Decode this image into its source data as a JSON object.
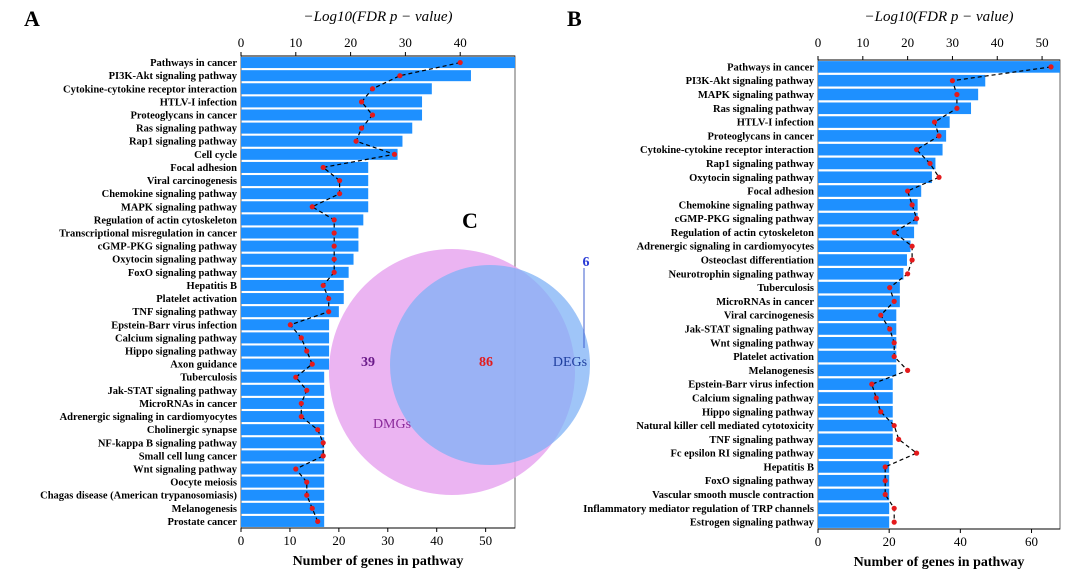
{
  "chart_data": [
    {
      "panel": "A",
      "type": "bar",
      "categories": [
        "Pathways in cancer",
        "PI3K-Akt signaling pathway",
        "Cytokine-cytokine receptor interaction",
        "HTLV-I infection",
        "Proteoglycans in cancer",
        "Ras signaling pathway",
        "Rap1 signaling pathway",
        "Cell cycle",
        "Focal adhesion",
        "Viral carcinogenesis",
        "Chemokine signaling pathway",
        "MAPK signaling pathway",
        "Regulation of actin cytoskeleton",
        "Transcriptional misregulation in cancer",
        "cGMP-PKG signaling pathway",
        "Oxytocin signaling pathway",
        "FoxO signaling pathway",
        "Hepatitis B",
        "Platelet activation",
        "TNF signaling pathway",
        "Epstein-Barr virus infection",
        "Calcium signaling pathway",
        "Hippo signaling pathway",
        "Axon guidance",
        "Tuberculosis",
        "Jak-STAT signaling pathway",
        "MicroRNAs in cancer",
        "Adrenergic signaling in cardiomyocytes",
        "Cholinergic synapse",
        "NF-kappa B signaling pathway",
        "Small cell lung cancer",
        "Wnt signaling pathway",
        "Oocyte meiosis",
        "Chagas disease (American trypanosomiasis)",
        "Melanogenesis",
        "Prostate cancer"
      ],
      "values": [
        56,
        47,
        39,
        37,
        37,
        35,
        33,
        32,
        26,
        26,
        26,
        26,
        25,
        24,
        24,
        23,
        22,
        21,
        21,
        20,
        18,
        18,
        18,
        18,
        17,
        17,
        17,
        17,
        17,
        17,
        17,
        17,
        17,
        17,
        17,
        17
      ],
      "line_values": [
        40,
        29,
        24,
        22,
        24,
        22,
        21,
        28,
        15,
        18,
        18,
        13,
        17,
        17,
        17,
        17,
        17,
        15,
        16,
        16,
        9,
        11,
        12,
        13,
        10,
        12,
        11,
        11,
        14,
        15,
        15,
        10,
        12,
        12,
        13,
        14
      ],
      "xlabel": "Number of genes in pathway",
      "top_label": "−Log10(FDR p − value)",
      "xlim": [
        0,
        56
      ],
      "xticks": [
        0,
        10,
        20,
        30,
        40,
        50
      ],
      "top_xlim": [
        0,
        50
      ],
      "top_xticks": [
        0,
        10,
        20,
        30,
        40
      ],
      "bar_color": "#1e90ff",
      "line_color": "#000000",
      "point_color": "#e41a1c"
    },
    {
      "panel": "B",
      "type": "bar",
      "categories": [
        "Pathways in cancer",
        "PI3K-Akt signaling pathway",
        "MAPK signaling pathway",
        "Ras signaling pathway",
        "HTLV-I infection",
        "Proteoglycans in cancer",
        "Cytokine-cytokine receptor interaction",
        "Rap1 signaling pathway",
        "Oxytocin signaling pathway",
        "Focal adhesion",
        "Chemokine signaling pathway",
        "cGMP-PKG signaling pathway",
        "Regulation of actin cytoskeleton",
        "Adrenergic signaling in cardiomyocytes",
        "Osteoclast differentiation",
        "Neurotrophin signaling pathway",
        "Tuberculosis",
        "MicroRNAs in cancer",
        "Viral carcinogenesis",
        "Jak-STAT signaling pathway",
        "Wnt signaling pathway",
        "Platelet activation",
        "Melanogenesis",
        "Epstein-Barr virus infection",
        "Calcium signaling pathway",
        "Hippo signaling pathway",
        "Natural killer cell mediated cytotoxicity",
        "TNF signaling pathway",
        "Fc epsilon RI signaling pathway",
        "Hepatitis B",
        "FoxO signaling pathway",
        "Vascular smooth muscle contraction",
        "Inflammatory mediator regulation of TRP channels",
        "Estrogen signaling pathway"
      ],
      "values": [
        68,
        47,
        45,
        43,
        37,
        36,
        35,
        33,
        32,
        29,
        28,
        28,
        27,
        26,
        25,
        24,
        23,
        23,
        22,
        22,
        22,
        22,
        22,
        21,
        21,
        21,
        21,
        21,
        21,
        20,
        20,
        20,
        20,
        20
      ],
      "line_values": [
        52,
        30,
        31,
        31,
        26,
        27,
        22,
        25,
        27,
        20,
        21,
        22,
        17,
        21,
        21,
        20,
        16,
        17,
        14,
        16,
        17,
        17,
        20,
        12,
        13,
        14,
        17,
        18,
        22,
        15,
        15,
        15,
        17,
        17
      ],
      "xlabel": "Number of genes in pathway",
      "top_label": "−Log10(FDR p − value)",
      "xlim": [
        0,
        68
      ],
      "xticks": [
        0,
        20,
        40,
        60
      ],
      "top_xlim": [
        0,
        54
      ],
      "top_xticks": [
        0,
        10,
        20,
        30,
        40,
        50
      ],
      "bar_color": "#1e90ff",
      "line_color": "#000000",
      "point_color": "#e41a1c"
    }
  ],
  "panels": {
    "a": "A",
    "b": "B",
    "c": "C"
  },
  "venn": {
    "dmgs_only": "39",
    "overlap": "86",
    "degs_only": "6",
    "dmgs_label": "DMGs",
    "degs_label": "DEGs",
    "dmgs_color": "#e8a7f0",
    "degs_color": "#7fb2f5",
    "overlap_color": "#8f8ef2"
  }
}
